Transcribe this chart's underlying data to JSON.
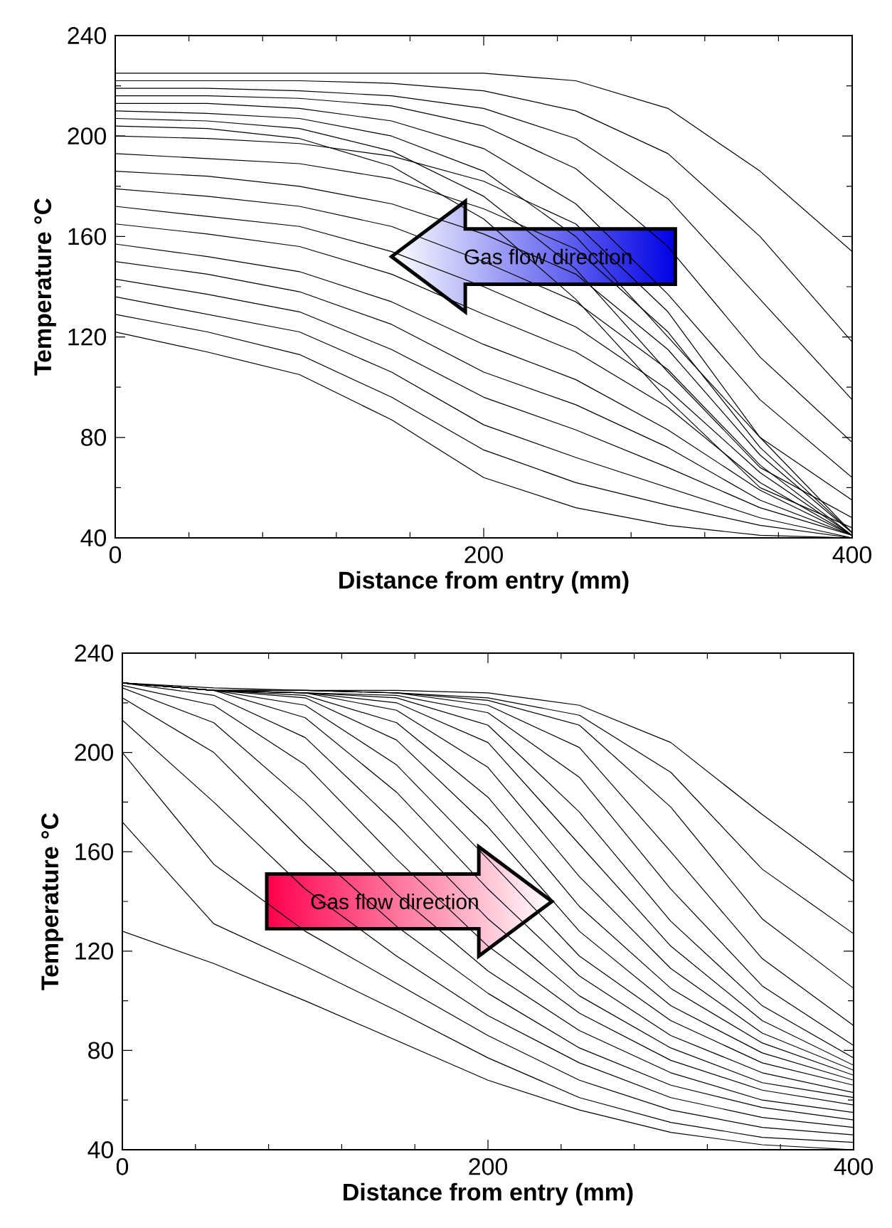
{
  "chart_data": [
    {
      "type": "line",
      "xlabel": "Distance from entry (mm)",
      "ylabel": "Temperature °C",
      "annotations": [
        "Gas flow direction"
      ],
      "xlim": [
        0,
        400
      ],
      "ylim": [
        40,
        240
      ],
      "xticks": [
        0,
        200,
        400
      ],
      "yticks": [
        40,
        80,
        120,
        160,
        200,
        240
      ],
      "x": [
        0,
        50,
        100,
        150,
        200,
        250,
        300,
        350,
        400
      ],
      "series": [
        {
          "color": "#000000",
          "values": [
            225,
            225,
            225,
            225,
            225,
            222,
            211,
            186,
            154
          ]
        },
        {
          "color": "#000000",
          "values": [
            222,
            222,
            222,
            221,
            218,
            210,
            193,
            160,
            118
          ]
        },
        {
          "color": "#000000",
          "values": [
            219,
            219,
            218,
            216,
            211,
            199,
            175,
            135,
            95
          ]
        },
        {
          "color": "#000000",
          "values": [
            216,
            216,
            215,
            212,
            204,
            187,
            156,
            112,
            78
          ]
        },
        {
          "color": "#000000",
          "values": [
            213,
            213,
            211,
            206,
            195,
            173,
            137,
            95,
            64
          ]
        },
        {
          "color": "#000000",
          "values": [
            210,
            209,
            207,
            200,
            186,
            160,
            120,
            80,
            55
          ]
        },
        {
          "color": "#000000",
          "values": [
            207,
            206,
            203,
            194,
            176,
            147,
            106,
            68,
            48
          ]
        },
        {
          "color": "#000000",
          "values": [
            204,
            203,
            199,
            188,
            167,
            135,
            95,
            60,
            44
          ]
        },
        {
          "color": "#000000",
          "values": [
            200,
            199,
            197,
            192,
            182,
            165,
            130,
            80,
            42
          ]
        },
        {
          "color": "#000000",
          "values": [
            193,
            191,
            189,
            183,
            171,
            155,
            122,
            76,
            42
          ]
        },
        {
          "color": "#000000",
          "values": [
            186,
            184,
            180,
            173,
            161,
            145,
            115,
            73,
            42
          ]
        },
        {
          "color": "#000000",
          "values": [
            179,
            176,
            172,
            164,
            150,
            134,
            107,
            69,
            41
          ]
        },
        {
          "color": "#000000",
          "values": [
            172,
            168,
            164,
            154,
            140,
            124,
            99,
            66,
            41
          ]
        },
        {
          "color": "#000000",
          "values": [
            165,
            161,
            156,
            145,
            129,
            114,
            92,
            62,
            41
          ]
        },
        {
          "color": "#000000",
          "values": [
            157,
            152,
            146,
            134,
            117,
            103,
            83,
            59,
            41
          ]
        },
        {
          "color": "#000000",
          "values": [
            150,
            145,
            138,
            125,
            106,
            93,
            76,
            55,
            41
          ]
        },
        {
          "color": "#000000",
          "values": [
            143,
            137,
            130,
            115,
            96,
            83,
            68,
            52,
            41
          ]
        },
        {
          "color": "#000000",
          "values": [
            136,
            129,
            122,
            106,
            85,
            72,
            60,
            48,
            40
          ]
        },
        {
          "color": "#000000",
          "values": [
            129,
            122,
            113,
            96,
            75,
            62,
            53,
            45,
            40
          ]
        },
        {
          "color": "#000000",
          "values": [
            122,
            114,
            105,
            87,
            64,
            52,
            45,
            41,
            40
          ]
        }
      ]
    },
    {
      "type": "line",
      "xlabel": "Distance from entry (mm)",
      "ylabel": "Temperature °C",
      "annotations": [
        "Gas flow direction"
      ],
      "xlim": [
        0,
        400
      ],
      "ylim": [
        40,
        240
      ],
      "xticks": [
        0,
        200,
        400
      ],
      "yticks": [
        40,
        80,
        120,
        160,
        200,
        240
      ],
      "x": [
        0,
        50,
        100,
        150,
        200,
        250,
        300,
        350,
        400
      ],
      "series": [
        {
          "color": "#000000",
          "values": [
            128,
            115,
            100,
            84,
            68,
            56,
            47,
            42,
            40
          ]
        },
        {
          "color": "#000000",
          "values": [
            172,
            131,
            114,
            96,
            77,
            61,
            51,
            45,
            43
          ]
        },
        {
          "color": "#000000",
          "values": [
            200,
            155,
            128,
            107,
            86,
            68,
            56,
            49,
            46
          ]
        },
        {
          "color": "#000000",
          "values": [
            213,
            180,
            145,
            118,
            94,
            75,
            61,
            53,
            49
          ]
        },
        {
          "color": "#000000",
          "values": [
            222,
            200,
            163,
            130,
            103,
            81,
            66,
            57,
            52
          ]
        },
        {
          "color": "#000000",
          "values": [
            226,
            212,
            180,
            143,
            112,
            88,
            71,
            60,
            55
          ]
        },
        {
          "color": "#000000",
          "values": [
            227,
            219,
            195,
            157,
            122,
            95,
            76,
            64,
            58
          ]
        },
        {
          "color": "#000000",
          "values": [
            228,
            223,
            206,
            171,
            133,
            102,
            81,
            67,
            61
          ]
        },
        {
          "color": "#000000",
          "values": [
            228,
            225,
            214,
            184,
            145,
            110,
            86,
            71,
            63
          ]
        },
        {
          "color": "#000000",
          "values": [
            228,
            225,
            219,
            195,
            157,
            118,
            92,
            75,
            66
          ]
        },
        {
          "color": "#000000",
          "values": [
            228,
            225,
            222,
            205,
            170,
            128,
            98,
            79,
            68
          ]
        },
        {
          "color": "#000000",
          "values": [
            228,
            225,
            223,
            212,
            182,
            138,
            105,
            83,
            70
          ]
        },
        {
          "color": "#000000",
          "values": [
            228,
            225,
            224,
            217,
            194,
            150,
            113,
            87,
            72
          ]
        },
        {
          "color": "#000000",
          "values": [
            228,
            225,
            224,
            220,
            204,
            163,
            122,
            92,
            74
          ]
        },
        {
          "color": "#000000",
          "values": [
            228,
            225,
            224,
            222,
            211,
            176,
            132,
            98,
            77
          ]
        },
        {
          "color": "#000000",
          "values": [
            228,
            225,
            224,
            223,
            216,
            190,
            145,
            106,
            82
          ]
        },
        {
          "color": "#000000",
          "values": [
            228,
            225,
            225,
            224,
            219,
            202,
            160,
            117,
            90
          ]
        },
        {
          "color": "#000000",
          "values": [
            228,
            225,
            225,
            224,
            221,
            211,
            178,
            133,
            105
          ]
        },
        {
          "color": "#000000",
          "values": [
            228,
            225,
            225,
            224,
            222,
            215,
            192,
            153,
            127
          ]
        },
        {
          "color": "#000000",
          "values": [
            228,
            226,
            225,
            225,
            224,
            219,
            204,
            175,
            148
          ]
        }
      ]
    }
  ]
}
